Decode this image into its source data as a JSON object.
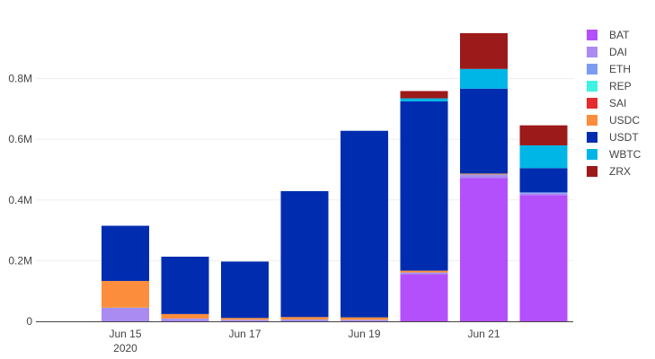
{
  "chart_data": {
    "type": "bar",
    "stacked": true,
    "title": "",
    "xlabel": "",
    "ylabel": "",
    "ylim": [
      0,
      1000000
    ],
    "categories": [
      "Jun 14",
      "Jun 15",
      "Jun 16",
      "Jun 17",
      "Jun 18",
      "Jun 19",
      "Jun 20",
      "Jun 21",
      "Jun 22"
    ],
    "x_ticks": [
      {
        "category": "Jun 15",
        "label": "Jun 15",
        "sublabel": "2020"
      },
      {
        "category": "Jun 17",
        "label": "Jun 17",
        "sublabel": ""
      },
      {
        "category": "Jun 19",
        "label": "Jun 19",
        "sublabel": ""
      },
      {
        "category": "Jun 21",
        "label": "Jun 21",
        "sublabel": ""
      }
    ],
    "y_ticks": [
      {
        "value": 0,
        "label": "0"
      },
      {
        "value": 200000,
        "label": "0.2M"
      },
      {
        "value": 400000,
        "label": "0.4M"
      },
      {
        "value": 600000,
        "label": "0.6M"
      },
      {
        "value": 800000,
        "label": "0.8M"
      }
    ],
    "legend_position": "right",
    "series": [
      {
        "name": "BAT",
        "color": "#b44ffc",
        "values": [
          0,
          0,
          0,
          0,
          0,
          0,
          155000,
          472000,
          416000
        ]
      },
      {
        "name": "DAI",
        "color": "#a98bf2",
        "values": [
          0,
          43000,
          8000,
          4000,
          5000,
          4000,
          5000,
          10000,
          5000
        ]
      },
      {
        "name": "ETH",
        "color": "#7c9cf2",
        "values": [
          0,
          2000,
          1000,
          1000,
          1000,
          1000,
          1000,
          2000,
          4000
        ]
      },
      {
        "name": "REP",
        "color": "#3ff2e3",
        "values": [
          0,
          0,
          0,
          0,
          0,
          0,
          0,
          0,
          0
        ]
      },
      {
        "name": "SAI",
        "color": "#e52d2d",
        "values": [
          0,
          0,
          0,
          0,
          0,
          0,
          0,
          0,
          0
        ]
      },
      {
        "name": "USDC",
        "color": "#fc8d3c",
        "values": [
          0,
          88000,
          15000,
          6000,
          8000,
          8000,
          6000,
          3000,
          0
        ]
      },
      {
        "name": "USDT",
        "color": "#002db0",
        "values": [
          0,
          182000,
          189000,
          186000,
          415000,
          615000,
          558000,
          280000,
          80000
        ]
      },
      {
        "name": "WBTC",
        "color": "#00b6e6",
        "values": [
          0,
          0,
          0,
          0,
          0,
          0,
          10000,
          65000,
          75000
        ]
      },
      {
        "name": "ZRX",
        "color": "#9c1a1a",
        "values": [
          0,
          0,
          0,
          0,
          0,
          0,
          24000,
          118000,
          66000
        ]
      }
    ]
  }
}
